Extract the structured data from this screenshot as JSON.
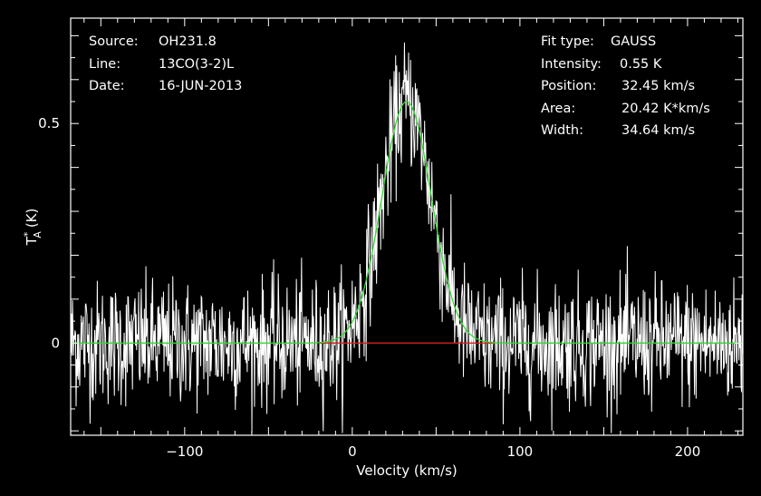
{
  "header_left": [
    {
      "key": "Source:",
      "value": "OH231.8"
    },
    {
      "key": "Line:",
      "value": "13CO(3-2)L"
    },
    {
      "key": "Date:",
      "value": "16-JUN-2013"
    }
  ],
  "header_right": [
    {
      "key": "Fit type:",
      "value": "GAUSS"
    },
    {
      "key": "Intensity:",
      "value": "0.55 K"
    },
    {
      "key": "Position:",
      "value": "32.45 km/s"
    },
    {
      "key": "Area:",
      "value": "20.42 K*km/s"
    },
    {
      "key": "Width:",
      "value": "34.64 km/s"
    }
  ],
  "chart_data": {
    "type": "line",
    "xlabel": "Velocity (km/s)",
    "ylabel": "T",
    "ylabel_superscript": "*",
    "ylabel_subscript": "A",
    "ylabel_unit": "(K)",
    "xlim": [
      -168,
      233
    ],
    "ylim": [
      -0.21,
      0.74
    ],
    "xticks": [
      -100,
      0,
      100,
      200
    ],
    "yticks": [
      0,
      0.5
    ],
    "xtick_labels": [
      "−100",
      "0",
      "100",
      "200"
    ],
    "ytick_labels": [
      "0",
      "0.5"
    ],
    "noise_rms": 0.07,
    "gaussian_fit": {
      "amplitude": 0.55,
      "center": 32.45,
      "fwhm": 34.64
    },
    "series": [
      {
        "type": "spectrum",
        "color": "#ffffff"
      },
      {
        "type": "gaussian_fit",
        "color": "#33d633"
      },
      {
        "type": "baseline",
        "color": "#d42020",
        "x_range": [
          -20,
          85
        ],
        "y": 0
      }
    ],
    "grid": false,
    "colors": {
      "background": "#000000",
      "axes": "#ffffff",
      "spectrum": "#ffffff",
      "fit": "#33d633",
      "baseline": "#d42020"
    }
  }
}
